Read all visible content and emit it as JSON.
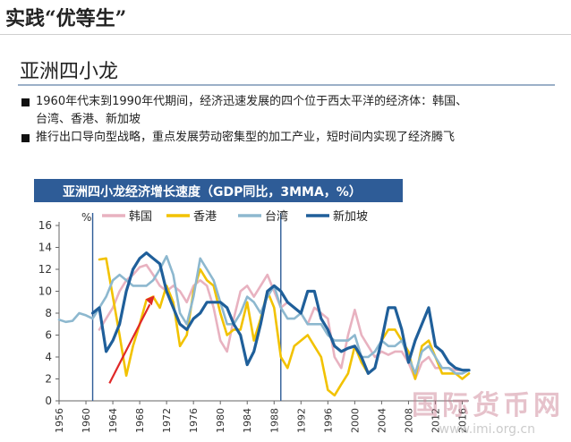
{
  "header": {
    "title": "实践“优等生”"
  },
  "section": {
    "title": "亚洲四小龙"
  },
  "bullets": [
    {
      "line1": "1960年代末到1990年代期间，经济迅速发展的四个位于西太平洋的经济体：韩国、",
      "line2": "台湾、香港、新加坡"
    },
    {
      "line1": "推行出口导向型战略，重点发展劳动密集型的加工产业，短时间内实现了经济腾飞",
      "line2": ""
    }
  ],
  "watermark": {
    "text": "国际货币网",
    "url": "www.imi.org.cn"
  },
  "colors": {
    "title_bar": "#2e5c97",
    "korea": "#e8b2c0",
    "hongkong": "#f2c200",
    "taiwan": "#8db8cf",
    "singapore": "#1f5f9a",
    "arrow": "#e02828",
    "vline": "#2e5c97"
  },
  "chart_data": {
    "type": "line",
    "title": "亚洲四小龙经济增长速度（GDP同比，3MMA，%）",
    "ylabel": "%",
    "ylim": [
      0,
      16
    ],
    "yticks": [
      0,
      2,
      4,
      6,
      8,
      10,
      12,
      14,
      16
    ],
    "xlim": [
      1956,
      2017
    ],
    "xticks": [
      1956,
      1960,
      1964,
      1968,
      1972,
      1976,
      1980,
      1984,
      1988,
      1992,
      1996,
      2000,
      2004,
      2008,
      2012,
      2016
    ],
    "vlines": [
      1961,
      1989
    ],
    "legend_position": "top",
    "series": [
      {
        "name": "韩国",
        "color_key": "korea",
        "x": [
          1962,
          1963,
          1964,
          1965,
          1966,
          1967,
          1968,
          1969,
          1970,
          1971,
          1972,
          1973,
          1974,
          1975,
          1976,
          1977,
          1978,
          1979,
          1980,
          1981,
          1982,
          1983,
          1984,
          1985,
          1986,
          1987,
          1988,
          1989,
          1990,
          1991,
          1992,
          1993,
          1994,
          1995,
          1996,
          1997,
          1998,
          1999,
          2000,
          2001,
          2002,
          2003,
          2004,
          2005,
          2006,
          2007,
          2008,
          2009,
          2010,
          2011,
          2012,
          2013,
          2014,
          2015,
          2016,
          2017
        ],
        "y": [
          6.5,
          7.5,
          8.5,
          10,
          11,
          11.5,
          12.2,
          12.4,
          11.5,
          10.5,
          10,
          10.5,
          10,
          9,
          10.5,
          11,
          10.5,
          8.5,
          5.5,
          4.5,
          7.5,
          10,
          10.5,
          9.5,
          10.5,
          11.5,
          10,
          8.5,
          9,
          8.5,
          8,
          7,
          8.5,
          8,
          7.5,
          4,
          3,
          6,
          8.3,
          6,
          5,
          4,
          4.5,
          4.2,
          4.5,
          4.5,
          3.5,
          2,
          3.5,
          4,
          3,
          3,
          3,
          2.8,
          2.8,
          2.8
        ]
      },
      {
        "name": "香港",
        "color_key": "hongkong",
        "x": [
          1962,
          1963,
          1964,
          1965,
          1966,
          1967,
          1968,
          1969,
          1970,
          1971,
          1972,
          1973,
          1974,
          1975,
          1976,
          1977,
          1978,
          1979,
          1980,
          1981,
          1982,
          1983,
          1984,
          1985,
          1986,
          1987,
          1988,
          1989,
          1990,
          1991,
          1992,
          1993,
          1994,
          1995,
          1996,
          1997,
          1998,
          1999,
          2000,
          2001,
          2002,
          2003,
          2004,
          2005,
          2006,
          2007,
          2008,
          2009,
          2010,
          2011,
          2012,
          2013,
          2014,
          2015,
          2016,
          2017
        ],
        "y": [
          12.9,
          13,
          9.5,
          6,
          2.3,
          5,
          7,
          9.2,
          9.5,
          8.5,
          10.5,
          9,
          5,
          6,
          10,
          12,
          11,
          10.5,
          8,
          6,
          6.5,
          6.5,
          9,
          5.5,
          7.5,
          10,
          8.5,
          4,
          3,
          5,
          5.5,
          6,
          5,
          4,
          1,
          0.5,
          1.5,
          2.5,
          5,
          3.5,
          2.5,
          3,
          5.5,
          6.5,
          6.5,
          5.5,
          4.5,
          2,
          5,
          5.5,
          4,
          2.5,
          2.5,
          2.5,
          2,
          2.5
        ]
      },
      {
        "name": "台湾",
        "color_key": "taiwan",
        "x": [
          1956,
          1957,
          1958,
          1959,
          1960,
          1961,
          1962,
          1963,
          1964,
          1965,
          1966,
          1967,
          1968,
          1969,
          1970,
          1971,
          1972,
          1973,
          1974,
          1975,
          1976,
          1977,
          1978,
          1979,
          1980,
          1981,
          1982,
          1983,
          1984,
          1985,
          1986,
          1987,
          1988,
          1989,
          1990,
          1991,
          1992,
          1993,
          1994,
          1995,
          1996,
          1997,
          1998,
          1999,
          2000,
          2001,
          2002,
          2003,
          2004,
          2005,
          2006,
          2007,
          2008,
          2009,
          2010,
          2011,
          2012,
          2013,
          2014,
          2015,
          2016,
          2017
        ],
        "y": [
          7.4,
          7.2,
          7.3,
          8,
          7.8,
          7.5,
          8.5,
          9.5,
          11,
          11.5,
          11,
          10.5,
          10.5,
          10.5,
          11,
          12,
          13.2,
          11.5,
          8,
          7,
          9.5,
          13,
          12,
          11,
          9,
          7,
          7,
          8,
          9.5,
          9,
          8,
          9.5,
          10.5,
          8.5,
          7.5,
          7.5,
          8,
          7,
          7,
          7,
          6,
          5.5,
          5.5,
          5.5,
          6,
          4,
          4,
          4.5,
          5.5,
          5,
          5,
          5.5,
          4,
          2.5,
          4.5,
          5,
          4,
          3,
          3,
          2.5,
          2.5,
          2.8
        ]
      },
      {
        "name": "新加坡",
        "color_key": "singapore",
        "x": [
          1961,
          1962,
          1963,
          1964,
          1965,
          1966,
          1967,
          1968,
          1969,
          1970,
          1971,
          1972,
          1973,
          1974,
          1975,
          1976,
          1977,
          1978,
          1979,
          1980,
          1981,
          1982,
          1983,
          1984,
          1985,
          1986,
          1987,
          1988,
          1989,
          1990,
          1991,
          1992,
          1993,
          1994,
          1995,
          1996,
          1997,
          1998,
          1999,
          2000,
          2001,
          2002,
          2003,
          2004,
          2005,
          2006,
          2007,
          2008,
          2009,
          2010,
          2011,
          2012,
          2013,
          2014,
          2015,
          2016,
          2017
        ],
        "y": [
          8,
          8.5,
          4.5,
          5.5,
          7,
          10,
          12,
          13,
          13.5,
          13,
          12.5,
          10,
          8.5,
          7,
          6.5,
          7.5,
          8,
          9,
          9,
          9,
          8.5,
          7,
          6,
          3.3,
          4.5,
          7,
          10,
          10.5,
          10,
          9,
          8.5,
          8,
          10,
          10,
          7.5,
          6.5,
          5,
          4.5,
          4.8,
          5,
          4,
          2.5,
          3,
          5.5,
          8.5,
          8.5,
          6.5,
          3.5,
          5.5,
          7,
          8.5,
          5,
          4.5,
          3.5,
          3,
          2.8,
          2.8
        ]
      }
    ]
  }
}
